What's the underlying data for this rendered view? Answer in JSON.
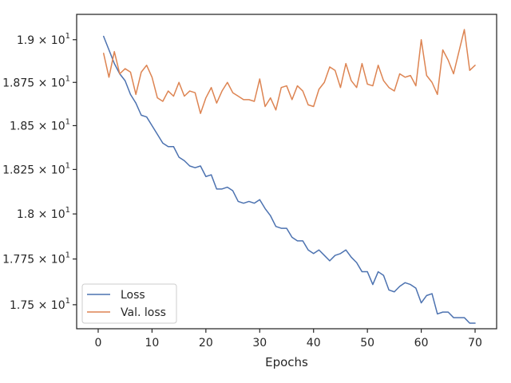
{
  "chart_data": {
    "type": "line",
    "title": "",
    "xlabel": "Epochs",
    "ylabel": "",
    "yscale": "log",
    "xlim": [
      -4.0,
      74.0
    ],
    "ylim": [
      17.37,
      19.15
    ],
    "grid": false,
    "legend_position": "lower-left",
    "x_ticks": [
      0,
      10,
      20,
      30,
      40,
      50,
      60,
      70
    ],
    "x_tick_labels": [
      "0",
      "10",
      "20",
      "30",
      "40",
      "50",
      "60",
      "70"
    ],
    "y_ticks": [
      17.5,
      17.75,
      18.0,
      18.25,
      18.5,
      18.75,
      19.0
    ],
    "y_tick_labels": [
      {
        "mantissa": "1.75",
        "base": "10",
        "exponent": "1"
      },
      {
        "mantissa": "1.775",
        "base": "10",
        "exponent": "1"
      },
      {
        "mantissa": "1.8",
        "base": "10",
        "exponent": "1"
      },
      {
        "mantissa": "1.825",
        "base": "10",
        "exponent": "1"
      },
      {
        "mantissa": "1.85",
        "base": "10",
        "exponent": "1"
      },
      {
        "mantissa": "1.875",
        "base": "10",
        "exponent": "1"
      },
      {
        "mantissa": "1.9",
        "base": "10",
        "exponent": "1"
      }
    ],
    "x": [
      1,
      2,
      3,
      4,
      5,
      6,
      7,
      8,
      9,
      10,
      11,
      12,
      13,
      14,
      15,
      16,
      17,
      18,
      19,
      20,
      21,
      22,
      23,
      24,
      25,
      26,
      27,
      28,
      29,
      30,
      31,
      32,
      33,
      34,
      35,
      36,
      37,
      38,
      39,
      40,
      41,
      42,
      43,
      44,
      45,
      46,
      47,
      48,
      49,
      50,
      51,
      52,
      53,
      54,
      55,
      56,
      57,
      58,
      59,
      60,
      61,
      62,
      63,
      64,
      65,
      66,
      67,
      68,
      69,
      70
    ],
    "series": [
      {
        "name": "Loss",
        "color": "#4c72b0",
        "values": [
          19.02,
          18.94,
          18.86,
          18.8,
          18.76,
          18.68,
          18.63,
          18.56,
          18.55,
          18.5,
          18.45,
          18.4,
          18.38,
          18.38,
          18.32,
          18.3,
          18.27,
          18.26,
          18.27,
          18.21,
          18.22,
          18.14,
          18.14,
          18.15,
          18.13,
          18.07,
          18.06,
          18.07,
          18.06,
          18.08,
          18.03,
          17.99,
          17.93,
          17.92,
          17.92,
          17.87,
          17.85,
          17.85,
          17.8,
          17.78,
          17.8,
          17.77,
          17.74,
          17.77,
          17.78,
          17.8,
          17.76,
          17.73,
          17.68,
          17.68,
          17.61,
          17.68,
          17.66,
          17.58,
          17.57,
          17.6,
          17.62,
          17.61,
          17.59,
          17.51,
          17.55,
          17.56,
          17.45,
          17.46,
          17.46,
          17.43,
          17.43,
          17.43,
          17.4,
          17.4
        ]
      },
      {
        "name": "Val. loss",
        "color": "#dd8452",
        "values": [
          18.92,
          18.78,
          18.93,
          18.8,
          18.83,
          18.81,
          18.68,
          18.81,
          18.85,
          18.78,
          18.66,
          18.64,
          18.7,
          18.67,
          18.75,
          18.67,
          18.7,
          18.69,
          18.57,
          18.66,
          18.72,
          18.63,
          18.7,
          18.75,
          18.69,
          18.67,
          18.65,
          18.65,
          18.64,
          18.77,
          18.61,
          18.66,
          18.59,
          18.72,
          18.73,
          18.65,
          18.73,
          18.7,
          18.62,
          18.61,
          18.71,
          18.75,
          18.84,
          18.82,
          18.72,
          18.86,
          18.76,
          18.72,
          18.86,
          18.74,
          18.73,
          18.85,
          18.76,
          18.72,
          18.7,
          18.8,
          18.78,
          18.79,
          18.73,
          19.0,
          18.79,
          18.75,
          18.68,
          18.94,
          18.88,
          18.8,
          18.93,
          19.06,
          18.82,
          18.85
        ]
      }
    ]
  }
}
